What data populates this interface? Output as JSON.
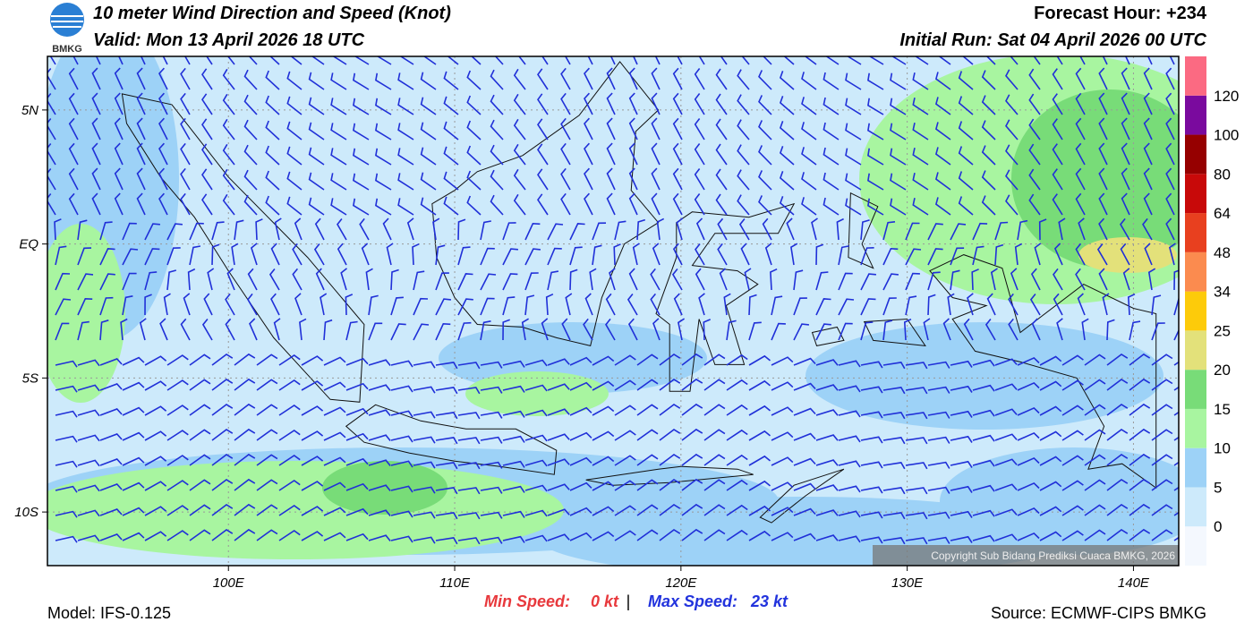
{
  "header": {
    "logo": "BMKG",
    "title": "10 meter Wind Direction and Speed (Knot)",
    "valid": "Valid: Mon 13 April 2026 18 UTC",
    "forecast_hour": "Forecast Hour: +234",
    "initial_run": "Initial Run: Sat 04 April 2026 00 UTC"
  },
  "map": {
    "xlim": [
      92,
      142
    ],
    "ylim": [
      -12,
      7
    ],
    "xticks": [
      {
        "value": 100,
        "label": "100E"
      },
      {
        "value": 110,
        "label": "110E"
      },
      {
        "value": 120,
        "label": "120E"
      },
      {
        "value": 130,
        "label": "130E"
      },
      {
        "value": 140,
        "label": "140E"
      }
    ],
    "yticks": [
      {
        "value": 5,
        "label": "5N"
      },
      {
        "value": 0,
        "label": "EQ"
      },
      {
        "value": -5,
        "label": "5S"
      },
      {
        "value": -10,
        "label": "10S"
      }
    ],
    "copyright": "Copyright Sub Bidang Prediksi Cuaca BMKG, 2026"
  },
  "colorbar": {
    "ticks": [
      0,
      5,
      10,
      15,
      20,
      25,
      34,
      48,
      64,
      80,
      100,
      120
    ],
    "colors": [
      "#f4f8fe",
      "#cdeafb",
      "#9dd2f7",
      "#a8f5a0",
      "#78dc78",
      "#e3e17a",
      "#fdcb0a",
      "#fb8b4f",
      "#e8401f",
      "#c80909",
      "#960000",
      "#7a0a9e",
      "#fb6a82"
    ]
  },
  "footer": {
    "min_label": "Min Speed:",
    "min_value": "0 kt",
    "separator": "|",
    "max_label": "Max Speed:",
    "max_value": "23 kt",
    "model": "Model: IFS-0.125",
    "source": "Source: ECMWF-CIPS BMKG"
  }
}
